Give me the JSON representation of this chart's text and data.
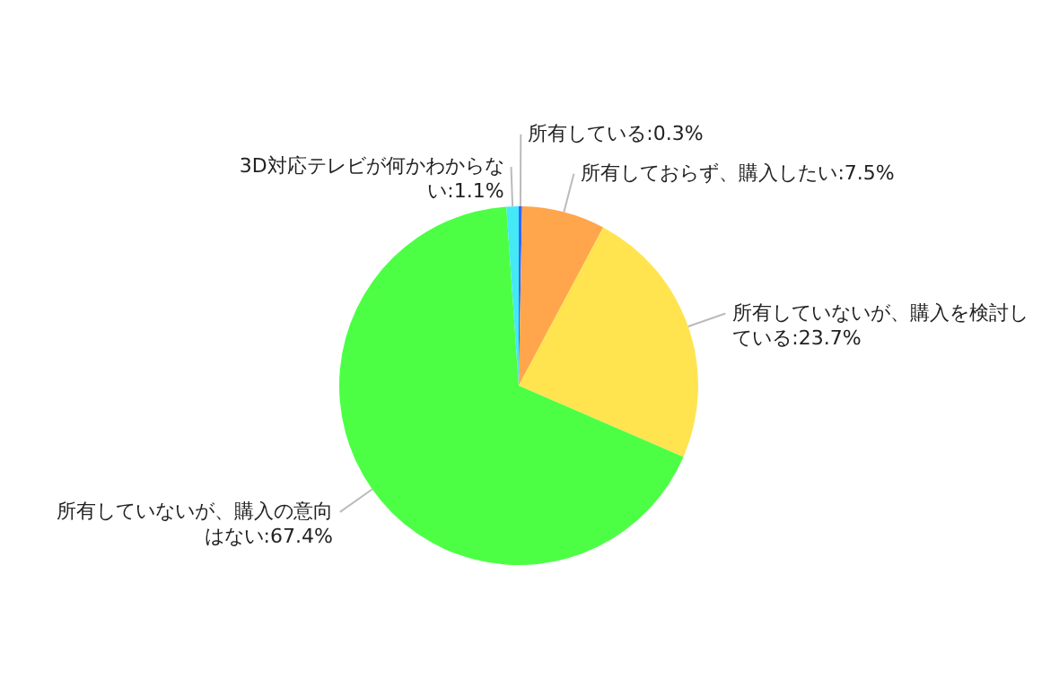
{
  "chart_data": {
    "type": "pie",
    "categories": [
      "所有している",
      "所有しておらず、購入したい",
      "所有していないが、購入を検討している",
      "所有していないが、購入の意向はない",
      "3D対応テレビが何かわからない"
    ],
    "values": [
      0.3,
      7.5,
      23.7,
      67.4,
      1.1
    ],
    "colors": [
      "#3366ff",
      "#ffa64d",
      "#ffe44f",
      "#4cff45",
      "#45e8f5"
    ],
    "value_labels": [
      "0.3%",
      "7.5%",
      "23.7%",
      "67.4%",
      "1.1%"
    ]
  }
}
